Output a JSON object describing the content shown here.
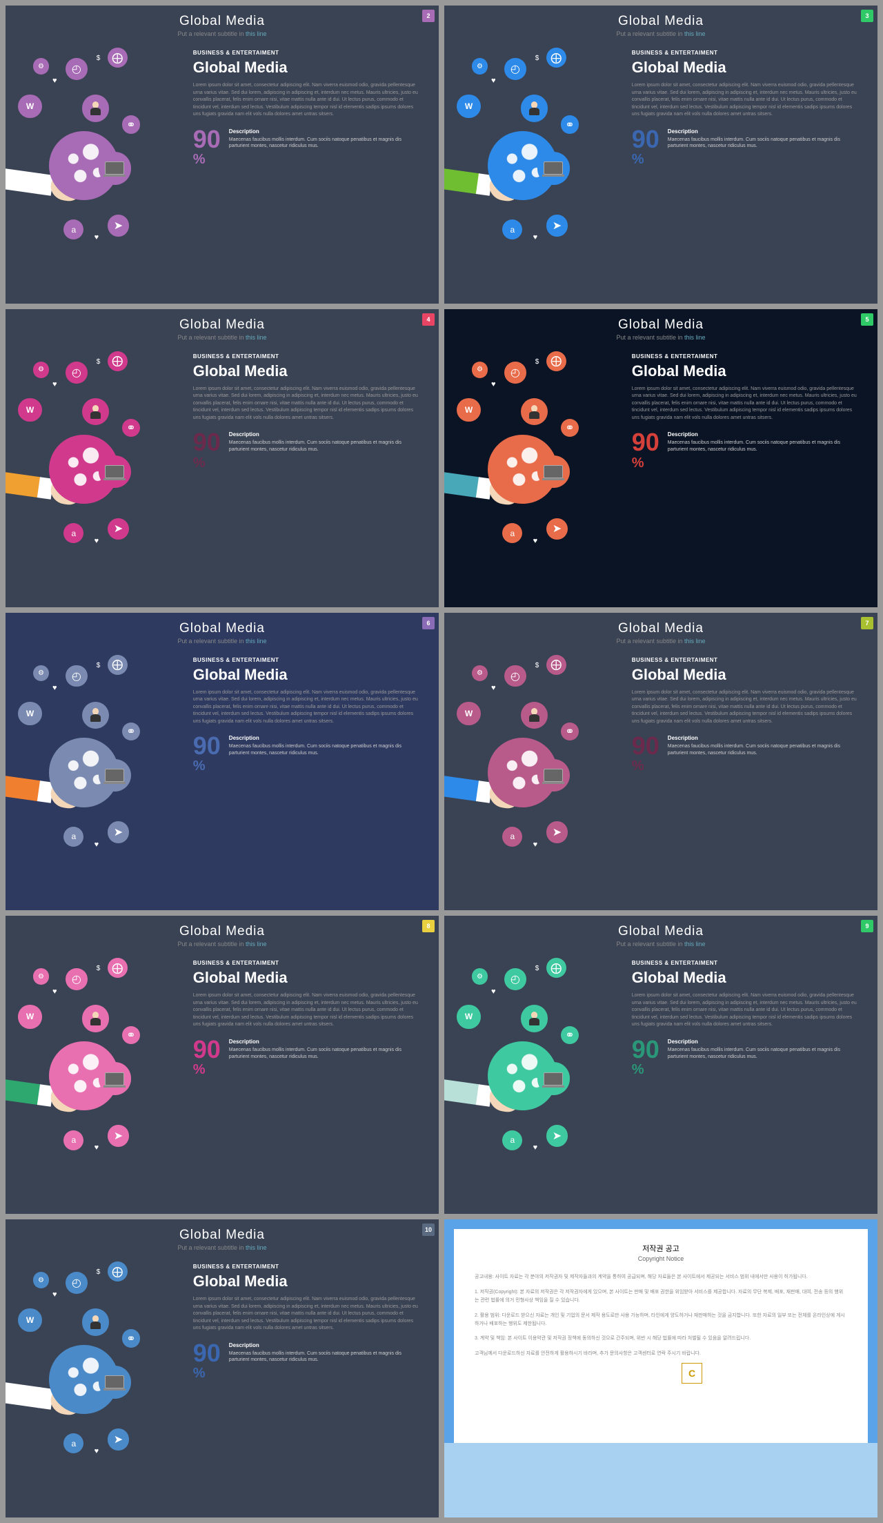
{
  "header_title": "Global Media",
  "header_sub_1": "Put a relevant subtitle in",
  "header_sub_2": "this line",
  "category": "BUSINESS & ENTERTAIMENT",
  "main_title": "Global Media",
  "body": "Lorem ipsum dolor sit amet, consectetur adipiscing elit. Nam viverra euismod odio, gravida pellentesque urna varius vitae. Sed dui lorem, adipiscing in adipiscing et, interdum nec metus. Mauris ultricies, justo eu convallis placerat, felis enim ornare nisi, vitae mattis nulla ante id dui. Ut lectus purus, commodo et tincidunt vel, interdum sed lectus. Vestibulum adipiscing tempor nisl id elementis sadips ipsums dolores uns fugiats gravida nam elit vols nulla dolores amet untras sitsers.",
  "stat_number": "90",
  "stat_pct": "%",
  "desc_label": "Description",
  "desc_text": "Maecenas faucibus mollis interdum. Cum sociis natoque penatibus et magnis dis parturient montes, nascetur ridiculus mus.",
  "icons": {
    "w": "W",
    "dollar": "$",
    "a": "a",
    "heart": "♥",
    "gear": "⚙",
    "clock": "◴",
    "compass": "⨁",
    "chain": "⚭",
    "plane": "➤"
  },
  "slides": [
    {
      "num": "2",
      "bg": "#3a4354",
      "accent": "#a86bb5",
      "stat": "#a86bb5",
      "sleeve": "#ffffff",
      "badge_bg": "#a86bb5"
    },
    {
      "num": "3",
      "bg": "#3a4354",
      "accent": "#2d8ae8",
      "stat": "#3a67b0",
      "sleeve": "#6fbd30",
      "badge_bg": "#2fc968"
    },
    {
      "num": "4",
      "bg": "#3a4354",
      "accent": "#d13a8c",
      "stat": "#6b2a4c",
      "sleeve": "#f0a030",
      "badge_bg": "#e84565"
    },
    {
      "num": "5",
      "bg": "#0a1425",
      "accent": "#e86b4a",
      "stat": "#d6403a",
      "sleeve": "#48a8b8",
      "badge_bg": "#2fc968"
    },
    {
      "num": "6",
      "bg": "#2e3a60",
      "accent": "#7a8ab0",
      "stat": "#4a6bb0",
      "sleeve": "#f08030",
      "badge_bg": "#8a6bb5"
    },
    {
      "num": "7",
      "bg": "#3a4354",
      "accent": "#b85a8a",
      "stat": "#6b2a4c",
      "sleeve": "#2d8ae8",
      "badge_bg": "#a8c030"
    },
    {
      "num": "8",
      "bg": "#3a4354",
      "accent": "#e870b0",
      "stat": "#d13a8c",
      "sleeve": "#2fa870",
      "badge_bg": "#e8d040"
    },
    {
      "num": "9",
      "bg": "#3a4354",
      "accent": "#3fc9a0",
      "stat": "#2a9878",
      "sleeve": "#b8e0d8",
      "badge_bg": "#2fc968"
    },
    {
      "num": "10",
      "bg": "#3a4354",
      "accent": "#4a8ac8",
      "stat": "#3a67b0",
      "sleeve": "#ffffff",
      "badge_bg": "#5a6a80"
    }
  ],
  "copyright": {
    "title": "저작권 공고",
    "subtitle": "Copyright Notice",
    "lines": [
      "공고내용: 사이트 자료는 각 분야의 저작권자 및 제작자들과의 계약을 통하여 공급되며, 해당 자료들은 본 사이트에서 제공되는 서비스 범위 내에서만 사용이 허가됩니다.",
      "1. 저작권(Copyright): 본 자료의 저작권은 각 저작권자에게 있으며, 본 사이트는 판매 및 배포 권한을 위임받아 서비스를 제공합니다. 자료의 무단 복제, 배포, 재판매, 대여, 전송 등의 행위는 관련 법률에 의거 민형사상 책임을 질 수 있습니다.",
      "2. 활용 범위: 다운로드 받으신 자료는 개인 및 기업의 문서 제작 용도로만 사용 가능하며, 타인에게 양도하거나 재판매하는 것을 금지합니다. 또한 자료의 일부 또는 전체를 온라인상에 게시하거나 배포하는 행위도 제한됩니다.",
      "3. 계약 및 책임: 본 사이트 이용약관 및 저작권 정책에 동의하신 것으로 간주되며, 위반 시 해당 법률에 따라 처벌될 수 있음을 알려드립니다.",
      "고객님께서 다운로드하신 자료를 안전하게 활용하시기 바라며, 추가 문의사항은 고객센터로 연락 주시기 바랍니다."
    ]
  }
}
